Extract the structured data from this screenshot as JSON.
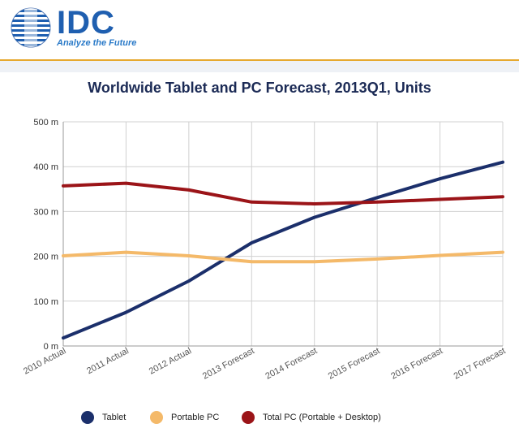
{
  "header": {
    "logo_text": "IDC",
    "tagline": "Analyze the Future"
  },
  "chart_data": {
    "type": "line",
    "title": "Worldwide Tablet and PC Forecast, 2013Q1, Units",
    "categories": [
      "2010 Actual",
      "2011 Actual",
      "2012 Actual",
      "2013 Forecast",
      "2014 Forecast",
      "2015 Forecast",
      "2016 Forecast",
      "2017 Forecast"
    ],
    "y_ticks": [
      "0 m",
      "100 m",
      "200 m",
      "300 m",
      "400 m",
      "500 m"
    ],
    "ylim": [
      0,
      500
    ],
    "grid": true,
    "legend_position": "bottom",
    "series": [
      {
        "name": "Tablet",
        "color": "#1b2f6b",
        "values": [
          18,
          75,
          145,
          230,
          287,
          331,
          373,
          410
        ]
      },
      {
        "name": "Portable PC",
        "color": "#f4b969",
        "values": [
          201,
          209,
          201,
          188,
          188,
          194,
          202,
          209
        ]
      },
      {
        "name": "Total PC (Portable + Desktop)",
        "color": "#9b1418",
        "values": [
          357,
          363,
          348,
          321,
          317,
          321,
          327,
          333
        ]
      }
    ]
  }
}
